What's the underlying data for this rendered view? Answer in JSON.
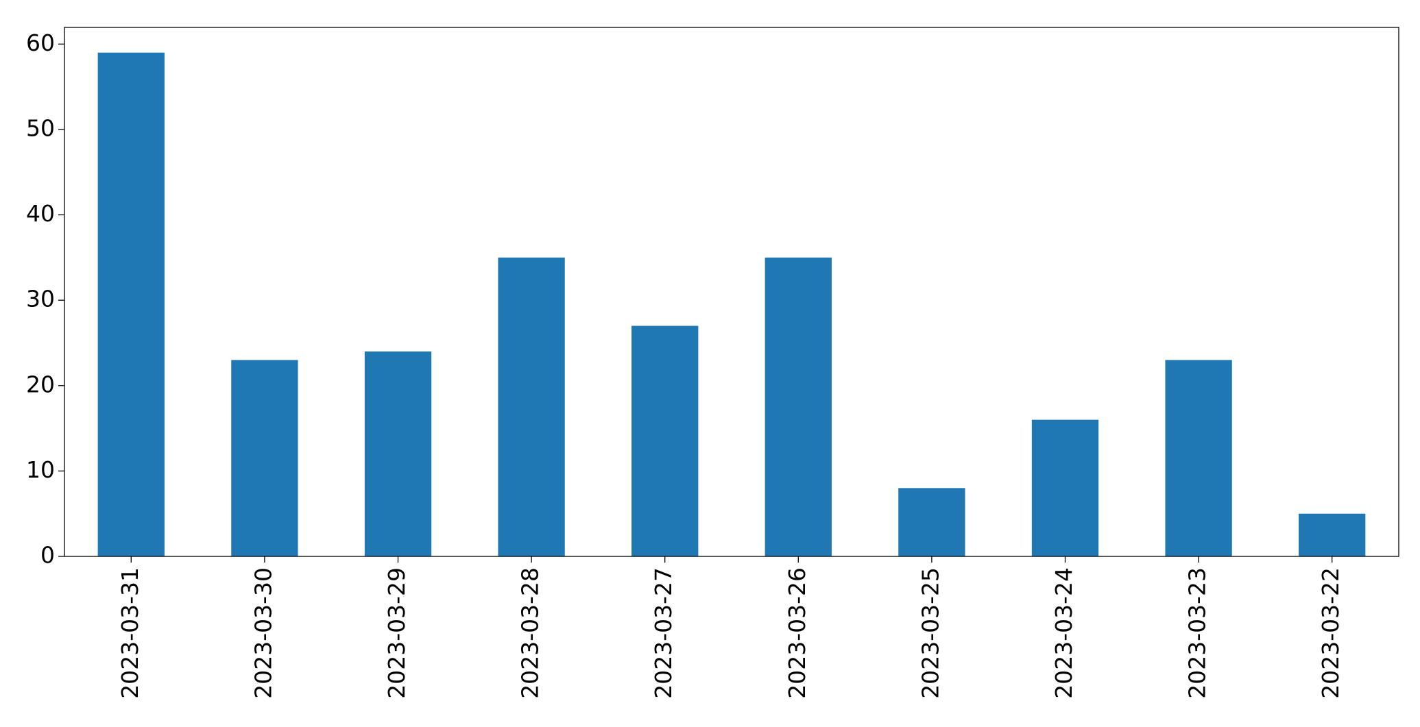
{
  "chart_data": {
    "type": "bar",
    "categories": [
      "2023-03-31",
      "2023-03-30",
      "2023-03-29",
      "2023-03-28",
      "2023-03-27",
      "2023-03-26",
      "2023-03-25",
      "2023-03-24",
      "2023-03-23",
      "2023-03-22"
    ],
    "values": [
      59,
      23,
      24,
      35,
      27,
      35,
      8,
      16,
      23,
      5
    ],
    "color": "#1f77b4",
    "ylim": [
      0,
      61.95
    ],
    "yticks": [
      0,
      10,
      20,
      30,
      40,
      50,
      60
    ],
    "grid": false
  }
}
